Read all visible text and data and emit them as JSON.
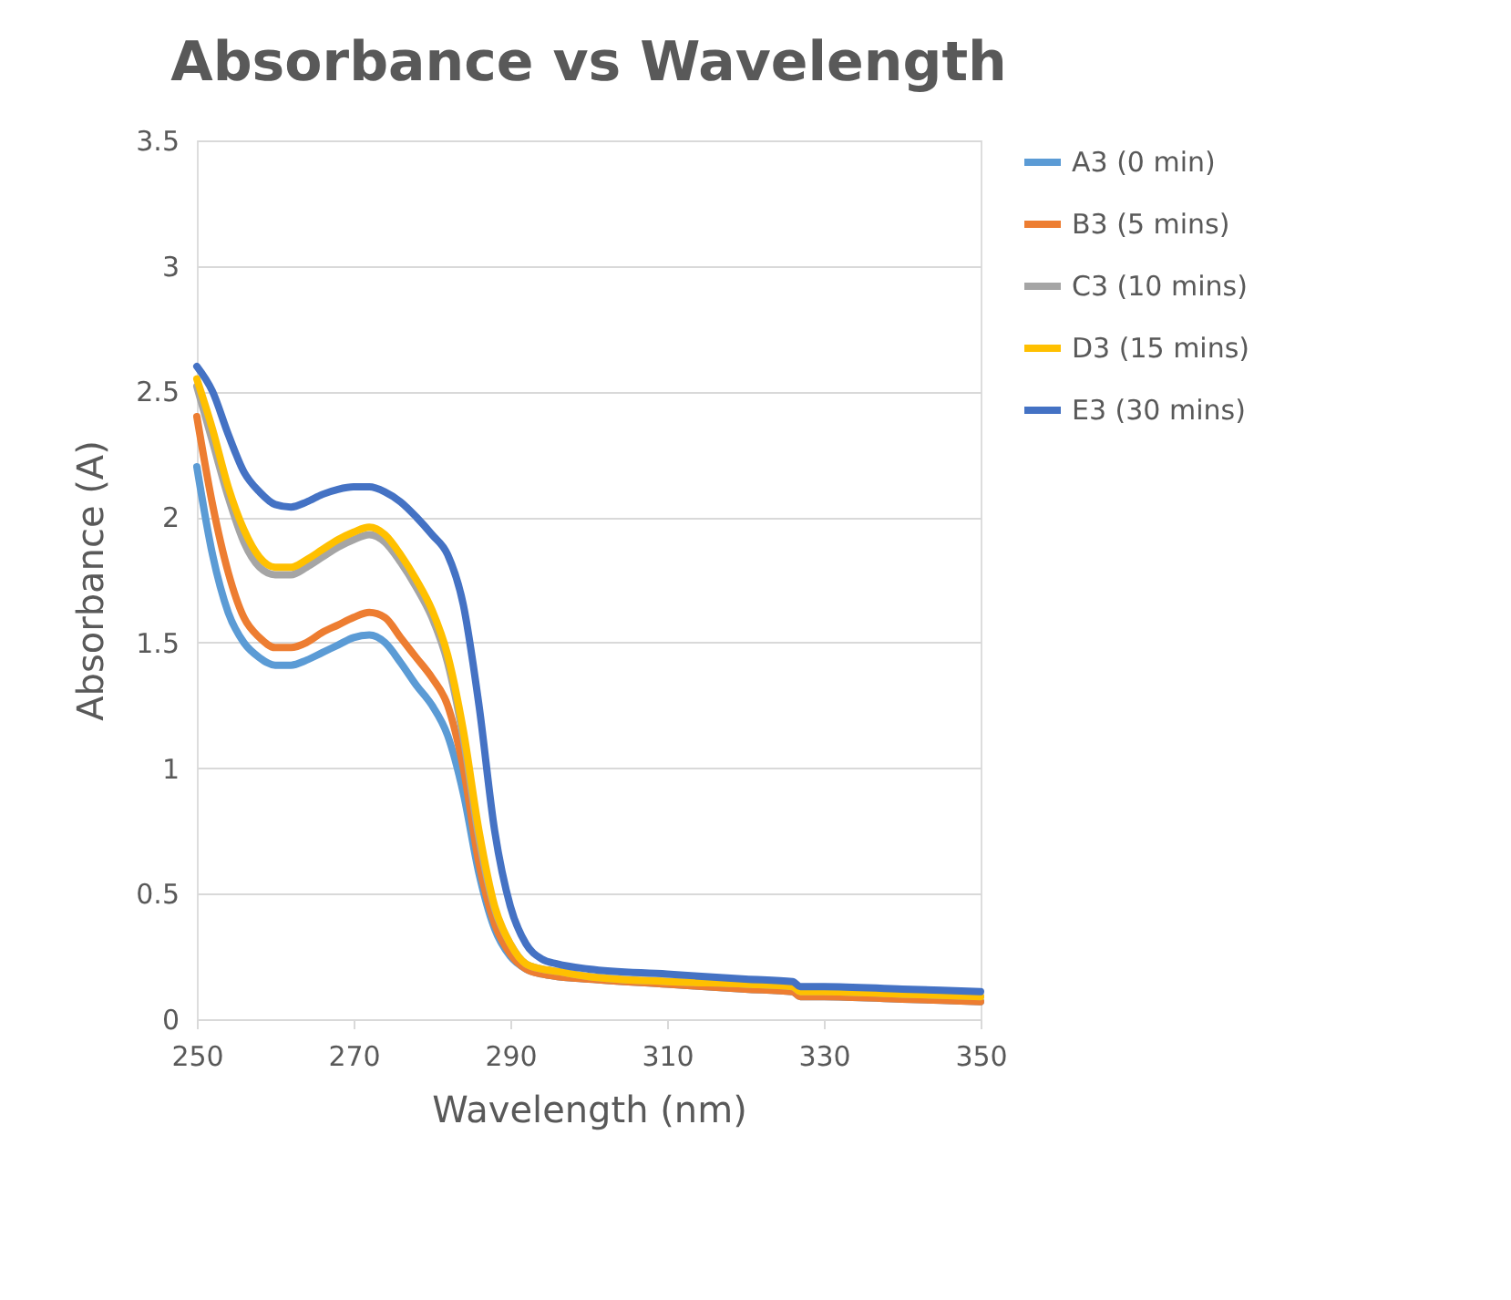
{
  "chart_data": {
    "type": "line",
    "title": "Absorbance vs Wavelength",
    "xlabel": "Wavelength (nm)",
    "ylabel": "Absorbance (A)",
    "x": [
      250,
      252,
      254,
      256,
      258,
      260,
      262,
      264,
      266,
      268,
      270,
      272,
      274,
      276,
      278,
      280,
      282,
      284,
      286,
      288,
      290,
      292,
      294,
      296,
      300,
      310,
      320,
      326,
      327,
      330,
      340,
      350
    ],
    "xlim": [
      250,
      350
    ],
    "xticks": [
      250,
      270,
      290,
      310,
      330,
      350
    ],
    "ylim": [
      0,
      3.5
    ],
    "yticks": [
      0,
      0.5,
      1,
      1.5,
      2,
      2.5,
      3,
      3.5
    ],
    "grid": "y",
    "legend": "right",
    "marker": "none",
    "line_style": "solid",
    "series": [
      {
        "name": "A3 (0 min)",
        "color": "#5b9bd5",
        "values": [
          2.2,
          1.85,
          1.62,
          1.5,
          1.44,
          1.41,
          1.41,
          1.43,
          1.46,
          1.49,
          1.52,
          1.53,
          1.5,
          1.42,
          1.33,
          1.25,
          1.13,
          0.9,
          0.58,
          0.36,
          0.25,
          0.2,
          0.18,
          0.17,
          0.16,
          0.14,
          0.12,
          0.11,
          0.09,
          0.09,
          0.08,
          0.07
        ]
      },
      {
        "name": "B3 (5 mins)",
        "color": "#ed7d31",
        "values": [
          2.4,
          2.05,
          1.78,
          1.6,
          1.52,
          1.48,
          1.48,
          1.5,
          1.54,
          1.57,
          1.6,
          1.62,
          1.6,
          1.52,
          1.44,
          1.36,
          1.25,
          1.0,
          0.62,
          0.38,
          0.26,
          0.2,
          0.18,
          0.17,
          0.16,
          0.14,
          0.12,
          0.11,
          0.09,
          0.09,
          0.08,
          0.07
        ]
      },
      {
        "name": "C3 (10 mins)",
        "color": "#a5a5a5",
        "values": [
          2.52,
          2.3,
          2.08,
          1.9,
          1.8,
          1.77,
          1.77,
          1.8,
          1.84,
          1.88,
          1.91,
          1.93,
          1.9,
          1.82,
          1.72,
          1.6,
          1.42,
          1.12,
          0.72,
          0.44,
          0.3,
          0.22,
          0.2,
          0.19,
          0.17,
          0.15,
          0.14,
          0.13,
          0.11,
          0.11,
          0.1,
          0.09
        ]
      },
      {
        "name": "D3 (15 mins)",
        "color": "#ffc000",
        "values": [
          2.55,
          2.35,
          2.12,
          1.95,
          1.84,
          1.8,
          1.8,
          1.83,
          1.87,
          1.91,
          1.94,
          1.96,
          1.93,
          1.85,
          1.75,
          1.63,
          1.45,
          1.15,
          0.75,
          0.45,
          0.3,
          0.22,
          0.2,
          0.19,
          0.17,
          0.15,
          0.14,
          0.13,
          0.11,
          0.11,
          0.1,
          0.09
        ]
      },
      {
        "name": "E3 (30 mins)",
        "color": "#4472c4",
        "values": [
          2.6,
          2.5,
          2.33,
          2.18,
          2.1,
          2.05,
          2.04,
          2.06,
          2.09,
          2.11,
          2.12,
          2.12,
          2.1,
          2.06,
          2.0,
          1.93,
          1.85,
          1.65,
          1.25,
          0.75,
          0.45,
          0.3,
          0.24,
          0.22,
          0.2,
          0.18,
          0.16,
          0.15,
          0.13,
          0.13,
          0.12,
          0.11
        ]
      }
    ]
  }
}
